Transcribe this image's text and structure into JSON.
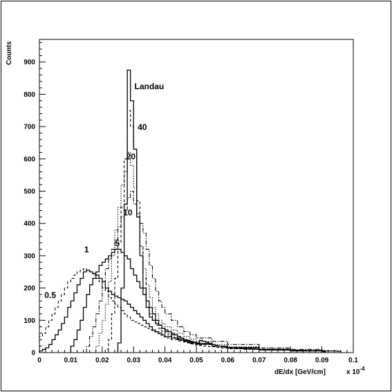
{
  "chart_data": {
    "type": "line",
    "title": "",
    "xlabel": "dE/dx [GeV/cm]",
    "x_multiplier": "x 10",
    "x_multiplier_exp": "-4",
    "ylabel": "Counts",
    "xlim": [
      0,
      0.1
    ],
    "ylim": [
      0,
      970
    ],
    "x_ticks": [
      0,
      0.01,
      0.02,
      0.03,
      0.04,
      0.05,
      0.06,
      0.07,
      0.08,
      0.09,
      0.1
    ],
    "x_tick_labels": [
      "0",
      "0.01",
      "0.02",
      "0.03",
      "0.04",
      "0.05",
      "0.06",
      "0.07",
      "0.08",
      "0.09",
      "0.1"
    ],
    "y_ticks": [
      0,
      100,
      200,
      300,
      400,
      500,
      600,
      700,
      800,
      900
    ],
    "y_tick_labels": [
      "0",
      "100",
      "200",
      "300",
      "400",
      "500",
      "600",
      "700",
      "800",
      "900"
    ],
    "grid": false,
    "legend": "none",
    "bin_width": 0.001,
    "series": [
      {
        "name": "Landau",
        "style": "solid",
        "x": [
          0.025,
          0.026,
          0.027,
          0.028,
          0.029,
          0.03,
          0.031,
          0.032,
          0.033,
          0.034,
          0.035,
          0.036,
          0.037,
          0.038,
          0.039,
          0.04,
          0.041,
          0.042,
          0.043,
          0.044,
          0.045,
          0.046,
          0.047,
          0.048,
          0.049,
          0.05,
          0.051,
          0.052,
          0.053,
          0.054,
          0.055,
          0.056,
          0.057,
          0.058,
          0.059,
          0.06,
          0.062,
          0.064,
          0.066,
          0.068,
          0.07,
          0.075,
          0.08,
          0.085,
          0.09,
          0.095
        ],
        "y": [
          30,
          200,
          460,
          875,
          780,
          630,
          420,
          300,
          200,
          140,
          110,
          100,
          90,
          85,
          75,
          70,
          65,
          60,
          55,
          50,
          45,
          40,
          38,
          35,
          32,
          30,
          38,
          35,
          32,
          28,
          25,
          22,
          20,
          18,
          16,
          15,
          13,
          12,
          11,
          10,
          9,
          8,
          7,
          6,
          5,
          4
        ]
      },
      {
        "name": "40",
        "style": "dashed",
        "x": [
          0.021,
          0.022,
          0.023,
          0.024,
          0.025,
          0.026,
          0.027,
          0.028,
          0.029,
          0.03,
          0.031,
          0.032,
          0.033,
          0.034,
          0.035,
          0.036,
          0.037,
          0.038,
          0.039,
          0.04,
          0.041,
          0.042,
          0.043,
          0.044,
          0.045,
          0.046,
          0.047,
          0.048,
          0.049,
          0.05,
          0.052,
          0.054,
          0.056,
          0.058,
          0.06,
          0.065,
          0.07,
          0.08,
          0.09
        ],
        "y": [
          10,
          40,
          120,
          230,
          340,
          450,
          600,
          750,
          700,
          630,
          470,
          330,
          230,
          160,
          120,
          100,
          85,
          75,
          65,
          60,
          55,
          50,
          46,
          42,
          38,
          34,
          30,
          27,
          24,
          22,
          20,
          18,
          16,
          14,
          12,
          10,
          8,
          6,
          4
        ]
      },
      {
        "name": "20",
        "style": "dotted",
        "x": [
          0.018,
          0.019,
          0.02,
          0.021,
          0.022,
          0.023,
          0.024,
          0.025,
          0.026,
          0.027,
          0.028,
          0.029,
          0.03,
          0.031,
          0.032,
          0.033,
          0.034,
          0.035,
          0.036,
          0.037,
          0.038,
          0.039,
          0.04,
          0.042,
          0.044,
          0.046,
          0.048,
          0.05,
          0.055,
          0.06,
          0.07,
          0.08,
          0.09
        ],
        "y": [
          20,
          60,
          100,
          150,
          220,
          300,
          380,
          450,
          520,
          560,
          620,
          580,
          510,
          430,
          330,
          260,
          210,
          170,
          140,
          120,
          100,
          90,
          80,
          70,
          60,
          50,
          42,
          35,
          25,
          18,
          10,
          6,
          4
        ]
      },
      {
        "name": "10",
        "style": "dashdot",
        "x": [
          0.015,
          0.016,
          0.017,
          0.018,
          0.019,
          0.02,
          0.021,
          0.022,
          0.023,
          0.024,
          0.025,
          0.026,
          0.027,
          0.028,
          0.029,
          0.03,
          0.031,
          0.032,
          0.033,
          0.034,
          0.035,
          0.036,
          0.037,
          0.038,
          0.039,
          0.04,
          0.042,
          0.044,
          0.046,
          0.048,
          0.05,
          0.055,
          0.06,
          0.07,
          0.08,
          0.09
        ],
        "y": [
          20,
          50,
          80,
          120,
          160,
          220,
          260,
          290,
          320,
          350,
          390,
          420,
          440,
          480,
          500,
          460,
          430,
          400,
          370,
          320,
          270,
          230,
          190,
          160,
          140,
          120,
          100,
          80,
          65,
          55,
          45,
          35,
          25,
          15,
          10,
          6
        ]
      },
      {
        "name": "5",
        "style": "solid",
        "x": [
          0.01,
          0.011,
          0.012,
          0.013,
          0.014,
          0.015,
          0.016,
          0.017,
          0.018,
          0.019,
          0.02,
          0.021,
          0.022,
          0.023,
          0.024,
          0.025,
          0.026,
          0.027,
          0.028,
          0.029,
          0.03,
          0.031,
          0.032,
          0.033,
          0.034,
          0.035,
          0.036,
          0.037,
          0.038,
          0.039,
          0.04,
          0.042,
          0.044,
          0.046,
          0.048,
          0.05,
          0.055,
          0.06,
          0.07,
          0.08,
          0.09
        ],
        "y": [
          20,
          40,
          70,
          100,
          140,
          180,
          210,
          230,
          250,
          270,
          280,
          290,
          300,
          310,
          320,
          320,
          310,
          300,
          290,
          260,
          240,
          220,
          200,
          180,
          160,
          140,
          120,
          100,
          85,
          75,
          65,
          55,
          45,
          38,
          32,
          28,
          20,
          14,
          8,
          5,
          3
        ]
      },
      {
        "name": "1",
        "style": "solid",
        "x": [
          0.0,
          0.001,
          0.002,
          0.003,
          0.004,
          0.005,
          0.006,
          0.007,
          0.008,
          0.009,
          0.01,
          0.011,
          0.012,
          0.013,
          0.014,
          0.015,
          0.016,
          0.017,
          0.018,
          0.019,
          0.02,
          0.021,
          0.022,
          0.023,
          0.024,
          0.025,
          0.026,
          0.027,
          0.028,
          0.029,
          0.03,
          0.031,
          0.032,
          0.033,
          0.034,
          0.035,
          0.036,
          0.037,
          0.038,
          0.039,
          0.04,
          0.042,
          0.044,
          0.046,
          0.048,
          0.05,
          0.055,
          0.06,
          0.07,
          0.08,
          0.09
        ],
        "y": [
          5,
          10,
          15,
          25,
          40,
          55,
          70,
          90,
          110,
          140,
          160,
          185,
          210,
          230,
          250,
          255,
          250,
          245,
          240,
          230,
          220,
          200,
          190,
          180,
          175,
          170,
          165,
          160,
          150,
          140,
          130,
          120,
          110,
          100,
          90,
          80,
          70,
          65,
          60,
          55,
          50,
          45,
          40,
          35,
          30,
          26,
          20,
          15,
          10,
          6,
          4
        ]
      },
      {
        "name": "0.5",
        "style": "dashed",
        "x": [
          0.0,
          0.001,
          0.002,
          0.003,
          0.004,
          0.005,
          0.006,
          0.007,
          0.008,
          0.009,
          0.01,
          0.011,
          0.012,
          0.013,
          0.014,
          0.015,
          0.016,
          0.017,
          0.018,
          0.019,
          0.02,
          0.021,
          0.022,
          0.023,
          0.024,
          0.025,
          0.026,
          0.027,
          0.028,
          0.029,
          0.03,
          0.031,
          0.032,
          0.033,
          0.034,
          0.035,
          0.036,
          0.037,
          0.038,
          0.039,
          0.04,
          0.042,
          0.044,
          0.046,
          0.048,
          0.05,
          0.055,
          0.06,
          0.07,
          0.08,
          0.09
        ],
        "y": [
          50,
          60,
          80,
          100,
          120,
          140,
          160,
          180,
          200,
          220,
          230,
          240,
          250,
          255,
          260,
          255,
          250,
          240,
          230,
          220,
          200,
          190,
          170,
          160,
          150,
          140,
          130,
          120,
          110,
          100,
          95,
          90,
          85,
          80,
          75,
          70,
          65,
          60,
          55,
          50,
          45,
          40,
          36,
          32,
          28,
          25,
          20,
          16,
          11,
          7,
          4
        ]
      }
    ]
  }
}
